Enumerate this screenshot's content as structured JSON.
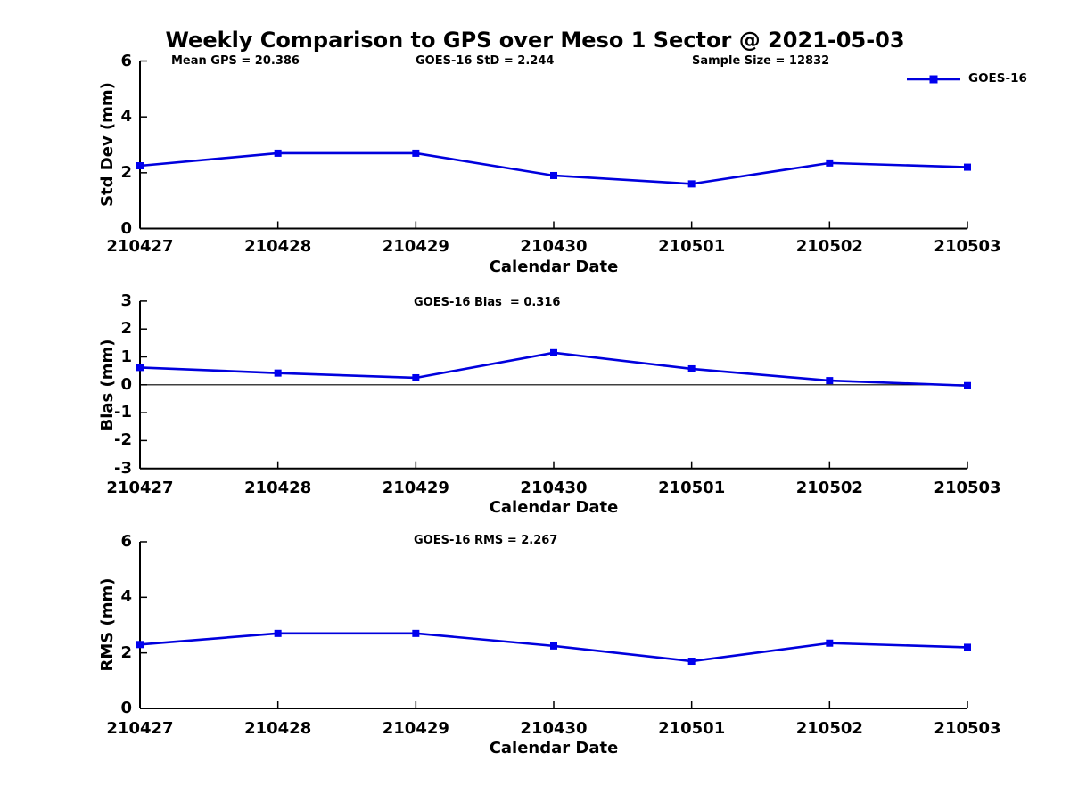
{
  "title": "Weekly Comparison to GPS over Meso 1 Sector @ 2021-05-03",
  "colors": {
    "line": "#0000dd",
    "marker": "#0000ee",
    "axis": "#000000",
    "zero_line": "#000000",
    "background": "#ffffff"
  },
  "chart_data": [
    {
      "type": "line",
      "panel": "std-dev",
      "ylabel": "Std Dev (mm)",
      "xlabel": "Calendar Date",
      "categories": [
        "210427",
        "210428",
        "210429",
        "210430",
        "210501",
        "210502",
        "210503"
      ],
      "series": [
        {
          "name": "GOES-16",
          "color": "#0000dd",
          "marker": "square",
          "values": [
            2.25,
            2.7,
            2.7,
            1.9,
            1.6,
            2.35,
            2.2
          ]
        }
      ],
      "ylim": [
        0,
        6
      ],
      "yticks": [
        0,
        2,
        4,
        6
      ],
      "grid": false,
      "annotations": [
        "Mean GPS = 20.386",
        "GOES-16 StD = 2.244",
        "Sample Size = 12832"
      ],
      "legend": {
        "position": "top-right",
        "entries": [
          "GOES-16"
        ]
      }
    },
    {
      "type": "line",
      "panel": "bias",
      "ylabel": "Bias (mm)",
      "xlabel": "Calendar Date",
      "categories": [
        "210427",
        "210428",
        "210429",
        "210430",
        "210501",
        "210502",
        "210503"
      ],
      "series": [
        {
          "name": "GOES-16",
          "color": "#0000dd",
          "marker": "square",
          "values": [
            0.62,
            0.42,
            0.25,
            1.15,
            0.57,
            0.15,
            -0.03
          ]
        }
      ],
      "ylim": [
        -3,
        3
      ],
      "yticks": [
        -3,
        -2,
        -1,
        0,
        1,
        2,
        3
      ],
      "grid": false,
      "zero_line": true,
      "annotations": [
        "GOES-16 Bias  = 0.316"
      ]
    },
    {
      "type": "line",
      "panel": "rms",
      "ylabel": "RMS (mm)",
      "xlabel": "Calendar Date",
      "categories": [
        "210427",
        "210428",
        "210429",
        "210430",
        "210501",
        "210502",
        "210503"
      ],
      "series": [
        {
          "name": "GOES-16",
          "color": "#0000dd",
          "marker": "square",
          "values": [
            2.3,
            2.7,
            2.7,
            2.25,
            1.7,
            2.35,
            2.2
          ]
        }
      ],
      "ylim": [
        0,
        6
      ],
      "yticks": [
        0,
        2,
        4,
        6
      ],
      "grid": false,
      "annotations": [
        "GOES-16 RMS = 2.267"
      ]
    }
  ]
}
